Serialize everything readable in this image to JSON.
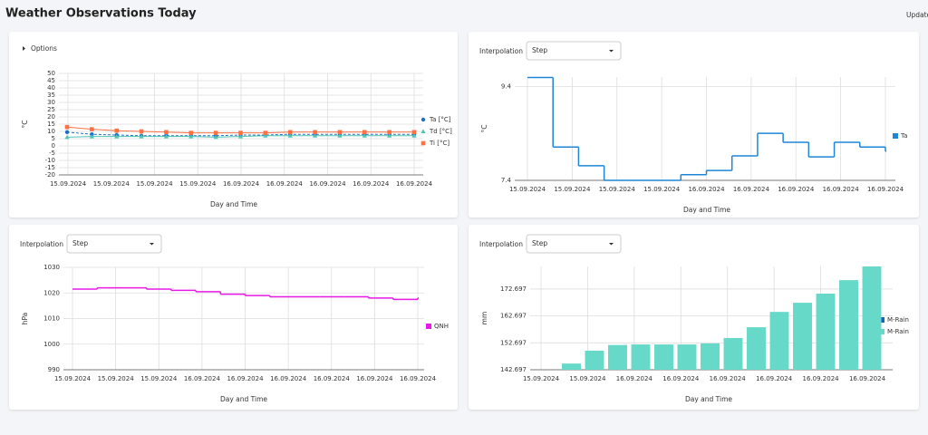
{
  "header": {
    "title": "Weather Observations Today",
    "update": "Update"
  },
  "chart_data": [
    {
      "type": "line",
      "options": "Options",
      "ylabel": "°C",
      "xlabel": "Day and Time",
      "xticks": [
        "15.09.2024",
        "15.09.2024",
        "15.09.2024",
        "15.09.2024",
        "16.09.2024",
        "16.09.2024",
        "16.09.2024",
        "16.09.2024",
        "16.09.2024"
      ],
      "ylim": [
        -20,
        50
      ],
      "yticks": [
        -20,
        -15,
        -10,
        -5,
        0,
        5,
        10,
        15,
        20,
        25,
        30,
        35,
        40,
        45,
        50
      ],
      "grid": true,
      "legend": "right",
      "series": [
        {
          "name": "Ta [°C]",
          "color": "#1f6fc0",
          "marker": "circle",
          "line_style": "dashed",
          "values": [
            9.5,
            8,
            7.5,
            7,
            7,
            7,
            7,
            7.5,
            7.5,
            8,
            8,
            8,
            8,
            8,
            8
          ]
        },
        {
          "name": "Td [°C]",
          "color": "#4fc3b5",
          "marker": "triangle",
          "line_style": "solid",
          "values": [
            6,
            6.5,
            6.5,
            6.5,
            6.5,
            6.5,
            6,
            6.5,
            7,
            7,
            7,
            7,
            7,
            7,
            7
          ]
        },
        {
          "name": "Ti [°C]",
          "color": "#ff7043",
          "marker": "square",
          "line_style": "solid",
          "values": [
            13,
            11.5,
            10.5,
            10,
            9.5,
            9,
            9,
            9,
            9,
            9.5,
            9.5,
            9.5,
            9.5,
            9.5,
            9.5
          ]
        }
      ]
    },
    {
      "type": "step",
      "interpolation_label": "Interpolation",
      "interpolation": "Step",
      "ylabel": "°C",
      "xlabel": "Day and Time",
      "xticks": [
        "15.09.2024",
        "15.09.2024",
        "15.09.2024",
        "15.09.2024",
        "16.09.2024",
        "16.09.2024",
        "16.09.2024",
        "16.09.2024",
        "16.09.2024"
      ],
      "ylim": [
        7.4,
        9.6
      ],
      "yticks": [
        7.4,
        9.4
      ],
      "grid": true,
      "legend": "right",
      "series": [
        {
          "name": "Ta",
          "color": "#1f86d6",
          "values": [
            9.59,
            8.11,
            7.71,
            7.4,
            7.4,
            7.4,
            7.52,
            7.61,
            7.92,
            8.4,
            8.21,
            7.9,
            8.21,
            8.11,
            8.02
          ]
        }
      ]
    },
    {
      "type": "step",
      "interpolation_label": "Interpolation",
      "interpolation": "Step",
      "ylabel": "hPa",
      "xlabel": "Day and Time",
      "xticks": [
        "15.09.2024",
        "15.09.2024",
        "15.09.2024",
        "16.09.2024",
        "16.09.2024",
        "16.09.2024",
        "16.09.2024",
        "16.09.2024",
        "16.09.2024"
      ],
      "ylim": [
        990,
        1030
      ],
      "yticks": [
        990,
        1000,
        1010,
        1020,
        1030
      ],
      "grid": true,
      "legend": "right",
      "series": [
        {
          "name": "QNH",
          "color": "#e619e6",
          "values": [
            1021.5,
            1022,
            1022,
            1021.5,
            1021,
            1020.5,
            1019.5,
            1019,
            1018.5,
            1018.5,
            1018.5,
            1018.5,
            1018,
            1017.5,
            1018
          ]
        }
      ]
    },
    {
      "type": "bar",
      "interpolation_label": "Interpolation",
      "interpolation": "Step",
      "ylabel": "mm",
      "xlabel": "Day and Time",
      "xticks": [
        "15.09.2024",
        "15.09.2024",
        "16.09.2024",
        "16.09.2024",
        "16.09.2024",
        "16.09.2024",
        "16.09.2024",
        "16.09.2024"
      ],
      "ylim": [
        142.697,
        181.1
      ],
      "yticks": [
        142.697,
        152.697,
        162.697,
        172.697
      ],
      "grid": true,
      "legend": "right",
      "series": [
        {
          "name": "M-Rain",
          "color": "#1565c0"
        },
        {
          "name": "M-Rain",
          "color": "#66d9c8",
          "values": [
            142.7,
            145,
            149.8,
            151.9,
            152.1,
            152.1,
            152.1,
            152.5,
            154.5,
            158.5,
            164.2,
            167.6,
            171,
            176,
            181.1
          ]
        }
      ]
    }
  ]
}
